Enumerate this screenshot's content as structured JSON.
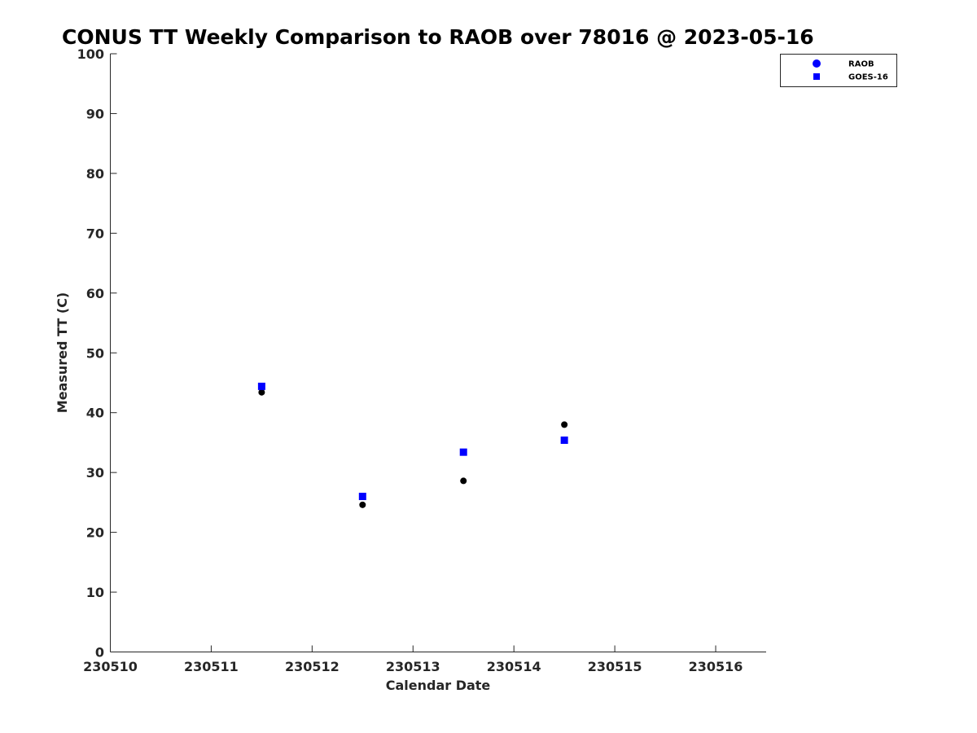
{
  "chart_data": {
    "type": "scatter",
    "title": "CONUS TT Weekly Comparison to RAOB over 78016 @ 2023-05-16",
    "xlabel": "Calendar Date",
    "ylabel": "Measured TT (C)",
    "xlim": [
      230510,
      230516.5
    ],
    "ylim": [
      0,
      100
    ],
    "x_ticks": [
      230510,
      230511,
      230512,
      230513,
      230514,
      230515,
      230516
    ],
    "y_ticks": [
      0,
      10,
      20,
      30,
      40,
      50,
      60,
      70,
      80,
      90,
      100
    ],
    "grid": false,
    "legend_position": "top-right",
    "series": [
      {
        "name": "RAOB",
        "marker": "circle",
        "legend_color": "#0000ff",
        "point_color": "#000000",
        "x": [
          230511.5,
          230512.5,
          230513.5,
          230514.5
        ],
        "y": [
          43.4,
          24.6,
          28.6,
          38.0
        ]
      },
      {
        "name": "GOES-16",
        "marker": "square",
        "legend_color": "#0000ff",
        "point_color": "#0000ff",
        "x": [
          230511.5,
          230512.5,
          230513.5,
          230514.5
        ],
        "y": [
          44.4,
          26.0,
          33.4,
          35.4
        ]
      }
    ]
  }
}
